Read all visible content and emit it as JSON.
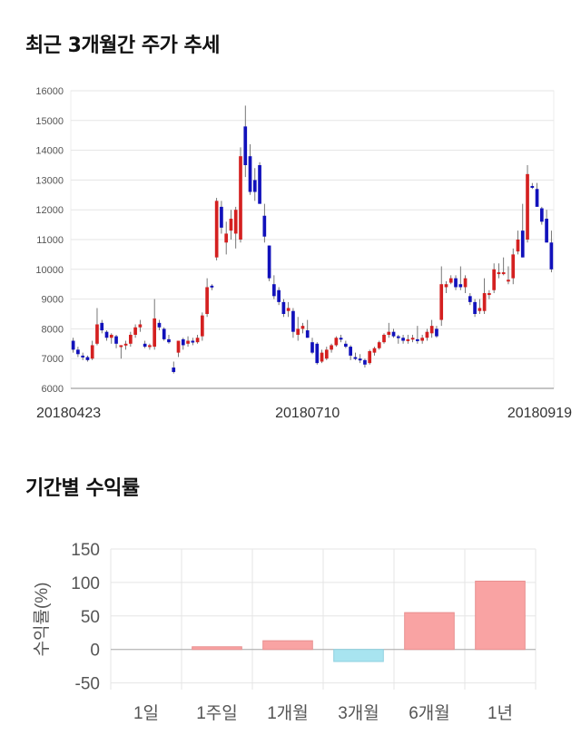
{
  "sections": {
    "price_title": "최근 3개월간 주가 추세",
    "returns_title": "기간별 수익률"
  },
  "colors": {
    "up": "#d42020",
    "down": "#1111bb",
    "pos_bar": "#f9a3a3",
    "neg_bar": "#a8e4f0",
    "grid": "#e5e5e5"
  },
  "chart_data": [
    {
      "type": "candlestick",
      "title": "최근 3개월간 주가 추세",
      "ylim": [
        6000,
        16000
      ],
      "yticks": [
        6000,
        7000,
        8000,
        9000,
        10000,
        11000,
        12000,
        13000,
        14000,
        15000,
        16000
      ],
      "xtick_labels": [
        "20180423",
        "20180710",
        "20180919"
      ],
      "xtick_index": [
        0,
        49,
        99
      ],
      "grid": true,
      "candles": [
        [
          7600,
          7700,
          7200,
          7300
        ],
        [
          7300,
          7400,
          7050,
          7150
        ],
        [
          7100,
          7200,
          6950,
          7050
        ],
        [
          7050,
          7100,
          6900,
          6950
        ],
        [
          7000,
          7600,
          6950,
          7450
        ],
        [
          7500,
          8700,
          7450,
          8150
        ],
        [
          8200,
          8300,
          7850,
          7950
        ],
        [
          7900,
          7950,
          7600,
          7700
        ],
        [
          7700,
          7850,
          7500,
          7800
        ],
        [
          7750,
          7800,
          7350,
          7500
        ],
        [
          7400,
          7450,
          7000,
          7450
        ],
        [
          7450,
          7600,
          7300,
          7500
        ],
        [
          7500,
          7900,
          7400,
          7800
        ],
        [
          7800,
          8150,
          7700,
          8050
        ],
        [
          8050,
          8300,
          7900,
          8150
        ],
        [
          7500,
          7600,
          7350,
          7400
        ],
        [
          7400,
          7500,
          7300,
          7450
        ],
        [
          7400,
          9000,
          7300,
          8350
        ],
        [
          8200,
          8300,
          7950,
          8050
        ],
        [
          8000,
          8050,
          7600,
          7650
        ],
        [
          7650,
          7800,
          7500,
          7550
        ],
        [
          6700,
          6900,
          6500,
          6550
        ],
        [
          7200,
          7600,
          7050,
          7600
        ],
        [
          7650,
          7700,
          7300,
          7450
        ],
        [
          7500,
          7750,
          7400,
          7600
        ],
        [
          7600,
          7700,
          7450,
          7550
        ],
        [
          7550,
          7800,
          7500,
          7700
        ],
        [
          7750,
          8550,
          7600,
          8450
        ],
        [
          8500,
          9700,
          8400,
          9400
        ],
        [
          9450,
          9500,
          9300,
          9400
        ],
        [
          10400,
          12400,
          10300,
          12300
        ],
        [
          12100,
          12300,
          11200,
          11400
        ],
        [
          10900,
          11600,
          10500,
          11200
        ],
        [
          11300,
          12000,
          11000,
          11700
        ],
        [
          11200,
          12100,
          10700,
          12000
        ],
        [
          11000,
          14100,
          10900,
          13800
        ],
        [
          14800,
          15500,
          13100,
          13500
        ],
        [
          13800,
          14200,
          12500,
          12600
        ],
        [
          13000,
          13400,
          12300,
          12600
        ],
        [
          13500,
          13600,
          12200,
          12200
        ],
        [
          11800,
          12200,
          10900,
          11100
        ],
        [
          10800,
          10800,
          9600,
          9700
        ],
        [
          9500,
          9800,
          9000,
          9100
        ],
        [
          9300,
          9400,
          8800,
          8900
        ],
        [
          8900,
          9000,
          8400,
          8500
        ],
        [
          8600,
          8900,
          8400,
          8700
        ],
        [
          8600,
          8700,
          7700,
          7900
        ],
        [
          7800,
          8400,
          7600,
          8000
        ],
        [
          8000,
          8200,
          7850,
          8100
        ],
        [
          7950,
          8300,
          7700,
          7700
        ],
        [
          7550,
          7700,
          7150,
          7200
        ],
        [
          7500,
          7550,
          6800,
          6850
        ],
        [
          6900,
          7300,
          6850,
          7200
        ],
        [
          7000,
          7400,
          6950,
          7300
        ],
        [
          7300,
          7500,
          7200,
          7450
        ],
        [
          7450,
          7750,
          7400,
          7700
        ],
        [
          7700,
          7800,
          7550,
          7650
        ],
        [
          7500,
          7600,
          7350,
          7400
        ],
        [
          7400,
          7450,
          6950,
          7100
        ],
        [
          7050,
          7200,
          6950,
          7000
        ],
        [
          7000,
          7150,
          6850,
          6950
        ],
        [
          6950,
          7000,
          6700,
          6800
        ],
        [
          6850,
          7300,
          6800,
          7250
        ],
        [
          7200,
          7400,
          7100,
          7350
        ],
        [
          7350,
          7600,
          7300,
          7550
        ],
        [
          7550,
          7850,
          7500,
          7800
        ],
        [
          7800,
          8200,
          7700,
          7900
        ],
        [
          7900,
          8000,
          7700,
          7750
        ],
        [
          7750,
          7800,
          7500,
          7700
        ],
        [
          7700,
          7800,
          7500,
          7600
        ],
        [
          7600,
          7800,
          7500,
          7650
        ],
        [
          7650,
          7800,
          7550,
          7700
        ],
        [
          7650,
          8100,
          7500,
          7600
        ],
        [
          7600,
          7800,
          7500,
          7700
        ],
        [
          7700,
          8000,
          7600,
          7900
        ],
        [
          7850,
          8300,
          7700,
          8100
        ],
        [
          8000,
          8100,
          7700,
          7750
        ],
        [
          8300,
          10100,
          8100,
          9500
        ],
        [
          9400,
          9600,
          9200,
          9500
        ],
        [
          9550,
          9800,
          9500,
          9700
        ],
        [
          9700,
          9800,
          9300,
          9400
        ],
        [
          9500,
          10100,
          9300,
          9400
        ],
        [
          9400,
          9800,
          9200,
          9700
        ],
        [
          9100,
          9200,
          8800,
          8900
        ],
        [
          8900,
          9000,
          8400,
          8500
        ],
        [
          8600,
          9000,
          8500,
          8700
        ],
        [
          8600,
          9700,
          8500,
          9200
        ],
        [
          9150,
          9300,
          9000,
          9200
        ],
        [
          9300,
          10200,
          9200,
          10000
        ],
        [
          9900,
          10200,
          9700,
          9900
        ],
        [
          9900,
          10400,
          9800,
          9900
        ],
        [
          9600,
          10100,
          9500,
          9650
        ],
        [
          9700,
          10700,
          9500,
          10500
        ],
        [
          10600,
          11300,
          10500,
          11000
        ],
        [
          11300,
          12200,
          10400,
          10400
        ],
        [
          11000,
          13500,
          10900,
          13200
        ],
        [
          12800,
          12900,
          12700,
          12750
        ],
        [
          12700,
          12900,
          12200,
          12100
        ],
        [
          12050,
          12100,
          11500,
          11600
        ],
        [
          11700,
          12000,
          10900,
          10900
        ],
        [
          10900,
          11300,
          9900,
          10000
        ]
      ]
    },
    {
      "type": "bar",
      "title": "기간별 수익률",
      "categories": [
        "1일",
        "1주일",
        "1개월",
        "3개월",
        "6개월",
        "1년"
      ],
      "values": [
        0,
        4,
        13,
        -18,
        55,
        102
      ],
      "ylabel": "수익률(%)",
      "ylim": [
        -60,
        150
      ],
      "yticks": [
        -50,
        0,
        50,
        100,
        150
      ],
      "grid": true
    }
  ]
}
